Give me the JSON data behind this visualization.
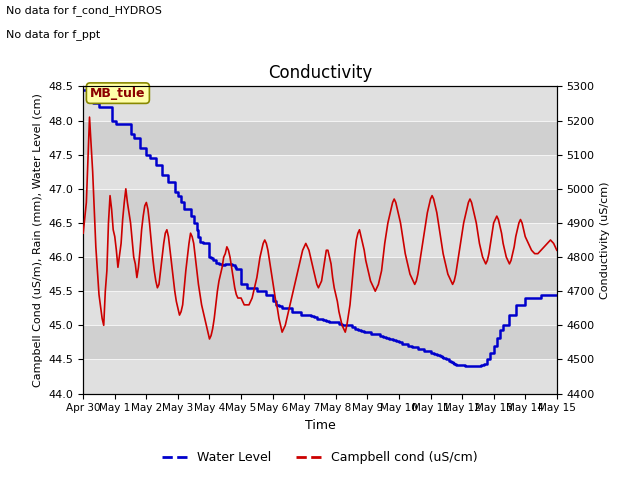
{
  "title": "Conductivity",
  "xlabel": "Time",
  "ylabel_left": "Campbell Cond (uS/m), Rain (mm), Water Level (cm)",
  "ylabel_right": "Conductivity (uS/cm)",
  "text_top_left_line1": "No data for f_cond_HYDROS",
  "text_top_left_line2": "No data for f_ppt",
  "box_label": "MB_tule",
  "ylim_left": [
    44.0,
    48.5
  ],
  "ylim_right": [
    4400,
    5300
  ],
  "yticks_left": [
    44.0,
    44.5,
    45.0,
    45.5,
    46.0,
    46.5,
    47.0,
    47.5,
    48.0,
    48.5
  ],
  "yticks_right": [
    4400,
    4500,
    4600,
    4700,
    4800,
    4900,
    5000,
    5100,
    5200,
    5300
  ],
  "legend_labels": [
    "Water Level",
    "Campbell cond (uS/cm)"
  ],
  "water_level_color": "#0000cc",
  "campbell_color": "#cc0000",
  "background_color": "#ffffff",
  "plot_bg_color": "#d8d8d8",
  "band_color_light": "#e8e8e8",
  "grid_color": "#f0f0f0",
  "water_level_data": [
    [
      0.0,
      48.45
    ],
    [
      0.04,
      48.45
    ],
    [
      0.3,
      48.25
    ],
    [
      0.5,
      48.2
    ],
    [
      0.55,
      48.2
    ],
    [
      0.9,
      48.0
    ],
    [
      1.0,
      48.0
    ],
    [
      1.05,
      47.95
    ],
    [
      1.5,
      47.8
    ],
    [
      1.6,
      47.75
    ],
    [
      1.8,
      47.6
    ],
    [
      2.0,
      47.5
    ],
    [
      2.1,
      47.45
    ],
    [
      2.3,
      47.35
    ],
    [
      2.5,
      47.2
    ],
    [
      2.7,
      47.1
    ],
    [
      2.9,
      46.95
    ],
    [
      3.0,
      46.9
    ],
    [
      3.1,
      46.8
    ],
    [
      3.2,
      46.7
    ],
    [
      3.4,
      46.6
    ],
    [
      3.5,
      46.5
    ],
    [
      3.6,
      46.4
    ],
    [
      3.65,
      46.3
    ],
    [
      3.7,
      46.22
    ],
    [
      3.8,
      46.2
    ],
    [
      4.0,
      46.0
    ],
    [
      4.05,
      45.98
    ],
    [
      4.1,
      45.95
    ],
    [
      4.2,
      45.92
    ],
    [
      4.3,
      45.9
    ],
    [
      4.4,
      45.88
    ],
    [
      4.5,
      45.9
    ],
    [
      4.55,
      45.9
    ],
    [
      4.6,
      45.9
    ],
    [
      4.7,
      45.88
    ],
    [
      4.8,
      45.85
    ],
    [
      4.85,
      45.83
    ],
    [
      5.0,
      45.6
    ],
    [
      5.1,
      45.6
    ],
    [
      5.2,
      45.55
    ],
    [
      5.3,
      45.55
    ],
    [
      5.5,
      45.5
    ],
    [
      5.6,
      45.5
    ],
    [
      5.8,
      45.45
    ],
    [
      6.0,
      45.35
    ],
    [
      6.1,
      45.3
    ],
    [
      6.2,
      45.28
    ],
    [
      6.3,
      45.25
    ],
    [
      6.4,
      45.25
    ],
    [
      6.5,
      45.25
    ],
    [
      6.6,
      45.2
    ],
    [
      6.8,
      45.2
    ],
    [
      6.9,
      45.15
    ],
    [
      7.0,
      45.15
    ],
    [
      7.1,
      45.15
    ],
    [
      7.2,
      45.13
    ],
    [
      7.3,
      45.12
    ],
    [
      7.4,
      45.1
    ],
    [
      7.5,
      45.1
    ],
    [
      7.6,
      45.08
    ],
    [
      7.7,
      45.07
    ],
    [
      7.8,
      45.05
    ],
    [
      8.0,
      45.05
    ],
    [
      8.1,
      45.02
    ],
    [
      8.2,
      45.0
    ],
    [
      8.3,
      45.0
    ],
    [
      8.4,
      45.0
    ],
    [
      8.5,
      44.97
    ],
    [
      8.6,
      44.95
    ],
    [
      8.7,
      44.93
    ],
    [
      8.8,
      44.92
    ],
    [
      8.9,
      44.9
    ],
    [
      9.0,
      44.9
    ],
    [
      9.1,
      44.88
    ],
    [
      9.2,
      44.88
    ],
    [
      9.3,
      44.87
    ],
    [
      9.4,
      44.85
    ],
    [
      9.5,
      44.83
    ],
    [
      9.6,
      44.82
    ],
    [
      9.7,
      44.8
    ],
    [
      9.8,
      44.78
    ],
    [
      9.9,
      44.77
    ],
    [
      10.0,
      44.75
    ],
    [
      10.1,
      44.73
    ],
    [
      10.2,
      44.72
    ],
    [
      10.3,
      44.7
    ],
    [
      10.4,
      44.68
    ],
    [
      10.5,
      44.68
    ],
    [
      10.6,
      44.66
    ],
    [
      10.7,
      44.65
    ],
    [
      10.8,
      44.63
    ],
    [
      10.9,
      44.62
    ],
    [
      11.0,
      44.6
    ],
    [
      11.1,
      44.58
    ],
    [
      11.2,
      44.57
    ],
    [
      11.3,
      44.55
    ],
    [
      11.35,
      44.53
    ],
    [
      11.4,
      44.52
    ],
    [
      11.5,
      44.5
    ],
    [
      11.6,
      44.48
    ],
    [
      11.65,
      44.47
    ],
    [
      11.7,
      44.45
    ],
    [
      11.75,
      44.43
    ],
    [
      11.8,
      44.42
    ],
    [
      11.85,
      44.42
    ],
    [
      11.9,
      44.42
    ],
    [
      12.0,
      44.42
    ],
    [
      12.1,
      44.41
    ],
    [
      12.2,
      44.4
    ],
    [
      12.3,
      44.4
    ],
    [
      12.4,
      44.4
    ],
    [
      12.5,
      44.4
    ],
    [
      12.6,
      44.42
    ],
    [
      12.7,
      44.43
    ],
    [
      12.8,
      44.5
    ],
    [
      12.9,
      44.6
    ],
    [
      13.0,
      44.7
    ],
    [
      13.1,
      44.82
    ],
    [
      13.2,
      44.93
    ],
    [
      13.3,
      45.0
    ],
    [
      13.5,
      45.15
    ],
    [
      13.7,
      45.3
    ],
    [
      14.0,
      45.4
    ],
    [
      14.5,
      45.45
    ],
    [
      15.0,
      45.45
    ]
  ],
  "campbell_data": [
    [
      0.0,
      4870
    ],
    [
      0.1,
      4960
    ],
    [
      0.2,
      5210
    ],
    [
      0.3,
      5050
    ],
    [
      0.4,
      4830
    ],
    [
      0.5,
      4690
    ],
    [
      0.6,
      4620
    ],
    [
      0.65,
      4600
    ],
    [
      0.7,
      4700
    ],
    [
      0.75,
      4760
    ],
    [
      0.8,
      4900
    ],
    [
      0.85,
      4980
    ],
    [
      0.9,
      4940
    ],
    [
      0.95,
      4880
    ],
    [
      1.0,
      4860
    ],
    [
      1.05,
      4820
    ],
    [
      1.1,
      4770
    ],
    [
      1.2,
      4840
    ],
    [
      1.25,
      4910
    ],
    [
      1.3,
      4960
    ],
    [
      1.35,
      5000
    ],
    [
      1.4,
      4960
    ],
    [
      1.5,
      4900
    ],
    [
      1.6,
      4800
    ],
    [
      1.65,
      4780
    ],
    [
      1.7,
      4740
    ],
    [
      1.75,
      4770
    ],
    [
      1.8,
      4820
    ],
    [
      1.85,
      4880
    ],
    [
      1.9,
      4920
    ],
    [
      1.95,
      4950
    ],
    [
      2.0,
      4960
    ],
    [
      2.05,
      4940
    ],
    [
      2.1,
      4900
    ],
    [
      2.15,
      4850
    ],
    [
      2.2,
      4800
    ],
    [
      2.25,
      4760
    ],
    [
      2.3,
      4730
    ],
    [
      2.35,
      4710
    ],
    [
      2.4,
      4720
    ],
    [
      2.45,
      4760
    ],
    [
      2.5,
      4800
    ],
    [
      2.55,
      4840
    ],
    [
      2.6,
      4870
    ],
    [
      2.65,
      4880
    ],
    [
      2.7,
      4860
    ],
    [
      2.75,
      4820
    ],
    [
      2.8,
      4780
    ],
    [
      2.85,
      4740
    ],
    [
      2.9,
      4700
    ],
    [
      2.95,
      4670
    ],
    [
      3.0,
      4650
    ],
    [
      3.05,
      4630
    ],
    [
      3.1,
      4640
    ],
    [
      3.15,
      4660
    ],
    [
      3.2,
      4710
    ],
    [
      3.25,
      4760
    ],
    [
      3.3,
      4800
    ],
    [
      3.35,
      4840
    ],
    [
      3.4,
      4870
    ],
    [
      3.45,
      4860
    ],
    [
      3.5,
      4840
    ],
    [
      3.55,
      4800
    ],
    [
      3.6,
      4760
    ],
    [
      3.65,
      4720
    ],
    [
      3.7,
      4690
    ],
    [
      3.75,
      4660
    ],
    [
      3.8,
      4640
    ],
    [
      3.85,
      4620
    ],
    [
      3.9,
      4600
    ],
    [
      3.95,
      4580
    ],
    [
      4.0,
      4560
    ],
    [
      4.05,
      4570
    ],
    [
      4.1,
      4590
    ],
    [
      4.15,
      4620
    ],
    [
      4.2,
      4660
    ],
    [
      4.25,
      4700
    ],
    [
      4.3,
      4730
    ],
    [
      4.35,
      4750
    ],
    [
      4.4,
      4770
    ],
    [
      4.45,
      4800
    ],
    [
      4.5,
      4810
    ],
    [
      4.55,
      4830
    ],
    [
      4.6,
      4820
    ],
    [
      4.65,
      4800
    ],
    [
      4.7,
      4770
    ],
    [
      4.75,
      4740
    ],
    [
      4.8,
      4710
    ],
    [
      4.85,
      4690
    ],
    [
      4.9,
      4680
    ],
    [
      4.95,
      4680
    ],
    [
      5.0,
      4680
    ],
    [
      5.05,
      4670
    ],
    [
      5.1,
      4660
    ],
    [
      5.15,
      4660
    ],
    [
      5.2,
      4660
    ],
    [
      5.25,
      4660
    ],
    [
      5.3,
      4670
    ],
    [
      5.35,
      4680
    ],
    [
      5.4,
      4700
    ],
    [
      5.45,
      4720
    ],
    [
      5.5,
      4740
    ],
    [
      5.55,
      4770
    ],
    [
      5.6,
      4800
    ],
    [
      5.65,
      4820
    ],
    [
      5.7,
      4840
    ],
    [
      5.75,
      4850
    ],
    [
      5.8,
      4840
    ],
    [
      5.85,
      4820
    ],
    [
      5.9,
      4790
    ],
    [
      5.95,
      4760
    ],
    [
      6.0,
      4730
    ],
    [
      6.05,
      4700
    ],
    [
      6.1,
      4670
    ],
    [
      6.15,
      4650
    ],
    [
      6.2,
      4620
    ],
    [
      6.25,
      4600
    ],
    [
      6.3,
      4580
    ],
    [
      6.35,
      4590
    ],
    [
      6.4,
      4600
    ],
    [
      6.45,
      4620
    ],
    [
      6.5,
      4640
    ],
    [
      6.55,
      4660
    ],
    [
      6.6,
      4680
    ],
    [
      6.65,
      4700
    ],
    [
      6.7,
      4720
    ],
    [
      6.75,
      4740
    ],
    [
      6.8,
      4760
    ],
    [
      6.85,
      4780
    ],
    [
      6.9,
      4800
    ],
    [
      6.95,
      4820
    ],
    [
      7.0,
      4830
    ],
    [
      7.05,
      4840
    ],
    [
      7.1,
      4830
    ],
    [
      7.15,
      4820
    ],
    [
      7.2,
      4800
    ],
    [
      7.25,
      4780
    ],
    [
      7.3,
      4760
    ],
    [
      7.35,
      4740
    ],
    [
      7.4,
      4720
    ],
    [
      7.45,
      4710
    ],
    [
      7.5,
      4720
    ],
    [
      7.55,
      4730
    ],
    [
      7.6,
      4760
    ],
    [
      7.65,
      4790
    ],
    [
      7.7,
      4820
    ],
    [
      7.75,
      4820
    ],
    [
      7.8,
      4800
    ],
    [
      7.85,
      4780
    ],
    [
      7.9,
      4740
    ],
    [
      7.95,
      4710
    ],
    [
      8.0,
      4690
    ],
    [
      8.05,
      4670
    ],
    [
      8.1,
      4640
    ],
    [
      8.15,
      4620
    ],
    [
      8.2,
      4600
    ],
    [
      8.25,
      4590
    ],
    [
      8.3,
      4580
    ],
    [
      8.35,
      4600
    ],
    [
      8.4,
      4630
    ],
    [
      8.45,
      4660
    ],
    [
      8.5,
      4710
    ],
    [
      8.55,
      4760
    ],
    [
      8.6,
      4810
    ],
    [
      8.65,
      4850
    ],
    [
      8.7,
      4870
    ],
    [
      8.75,
      4880
    ],
    [
      8.8,
      4860
    ],
    [
      8.85,
      4840
    ],
    [
      8.9,
      4820
    ],
    [
      8.95,
      4790
    ],
    [
      9.0,
      4770
    ],
    [
      9.05,
      4750
    ],
    [
      9.1,
      4730
    ],
    [
      9.15,
      4720
    ],
    [
      9.2,
      4710
    ],
    [
      9.25,
      4700
    ],
    [
      9.3,
      4710
    ],
    [
      9.35,
      4720
    ],
    [
      9.4,
      4740
    ],
    [
      9.45,
      4760
    ],
    [
      9.5,
      4800
    ],
    [
      9.55,
      4840
    ],
    [
      9.6,
      4870
    ],
    [
      9.65,
      4900
    ],
    [
      9.7,
      4920
    ],
    [
      9.75,
      4940
    ],
    [
      9.8,
      4960
    ],
    [
      9.85,
      4970
    ],
    [
      9.9,
      4960
    ],
    [
      9.95,
      4940
    ],
    [
      10.0,
      4920
    ],
    [
      10.05,
      4900
    ],
    [
      10.1,
      4870
    ],
    [
      10.15,
      4840
    ],
    [
      10.2,
      4810
    ],
    [
      10.25,
      4790
    ],
    [
      10.3,
      4770
    ],
    [
      10.35,
      4750
    ],
    [
      10.4,
      4740
    ],
    [
      10.45,
      4730
    ],
    [
      10.5,
      4720
    ],
    [
      10.55,
      4730
    ],
    [
      10.6,
      4750
    ],
    [
      10.65,
      4780
    ],
    [
      10.7,
      4810
    ],
    [
      10.75,
      4840
    ],
    [
      10.8,
      4870
    ],
    [
      10.85,
      4900
    ],
    [
      10.9,
      4930
    ],
    [
      10.95,
      4950
    ],
    [
      11.0,
      4970
    ],
    [
      11.05,
      4980
    ],
    [
      11.1,
      4970
    ],
    [
      11.15,
      4950
    ],
    [
      11.2,
      4930
    ],
    [
      11.25,
      4900
    ],
    [
      11.3,
      4870
    ],
    [
      11.35,
      4840
    ],
    [
      11.4,
      4810
    ],
    [
      11.45,
      4790
    ],
    [
      11.5,
      4770
    ],
    [
      11.55,
      4750
    ],
    [
      11.6,
      4740
    ],
    [
      11.65,
      4730
    ],
    [
      11.7,
      4720
    ],
    [
      11.75,
      4730
    ],
    [
      11.8,
      4750
    ],
    [
      11.85,
      4780
    ],
    [
      11.9,
      4810
    ],
    [
      11.95,
      4840
    ],
    [
      12.0,
      4870
    ],
    [
      12.05,
      4900
    ],
    [
      12.1,
      4920
    ],
    [
      12.15,
      4940
    ],
    [
      12.2,
      4960
    ],
    [
      12.25,
      4970
    ],
    [
      12.3,
      4960
    ],
    [
      12.35,
      4940
    ],
    [
      12.4,
      4920
    ],
    [
      12.45,
      4900
    ],
    [
      12.5,
      4870
    ],
    [
      12.55,
      4840
    ],
    [
      12.6,
      4820
    ],
    [
      12.65,
      4800
    ],
    [
      12.7,
      4790
    ],
    [
      12.75,
      4780
    ],
    [
      12.8,
      4790
    ],
    [
      12.85,
      4810
    ],
    [
      12.9,
      4840
    ],
    [
      12.95,
      4870
    ],
    [
      13.0,
      4900
    ],
    [
      13.05,
      4910
    ],
    [
      13.1,
      4920
    ],
    [
      13.15,
      4910
    ],
    [
      13.2,
      4890
    ],
    [
      13.25,
      4870
    ],
    [
      13.3,
      4840
    ],
    [
      13.35,
      4820
    ],
    [
      13.4,
      4800
    ],
    [
      13.45,
      4790
    ],
    [
      13.5,
      4780
    ],
    [
      13.55,
      4790
    ],
    [
      13.6,
      4810
    ],
    [
      13.65,
      4830
    ],
    [
      13.7,
      4860
    ],
    [
      13.75,
      4880
    ],
    [
      13.8,
      4900
    ],
    [
      13.85,
      4910
    ],
    [
      13.9,
      4900
    ],
    [
      13.95,
      4880
    ],
    [
      14.0,
      4860
    ],
    [
      14.1,
      4840
    ],
    [
      14.2,
      4820
    ],
    [
      14.3,
      4810
    ],
    [
      14.4,
      4810
    ],
    [
      14.5,
      4820
    ],
    [
      14.6,
      4830
    ],
    [
      14.7,
      4840
    ],
    [
      14.8,
      4850
    ],
    [
      14.9,
      4840
    ],
    [
      15.0,
      4820
    ]
  ],
  "xticklabels": [
    "Apr 30",
    "May 1",
    "May 2",
    "May 3",
    "May 4",
    "May 5",
    "May 6",
    "May 7",
    "May 8",
    "May 9",
    "May 10",
    "May 11",
    "May 12",
    "May 13",
    "May 14",
    "May 15"
  ],
  "xtick_positions": [
    0,
    1,
    2,
    3,
    4,
    5,
    6,
    7,
    8,
    9,
    10,
    11,
    12,
    13,
    14,
    15
  ]
}
